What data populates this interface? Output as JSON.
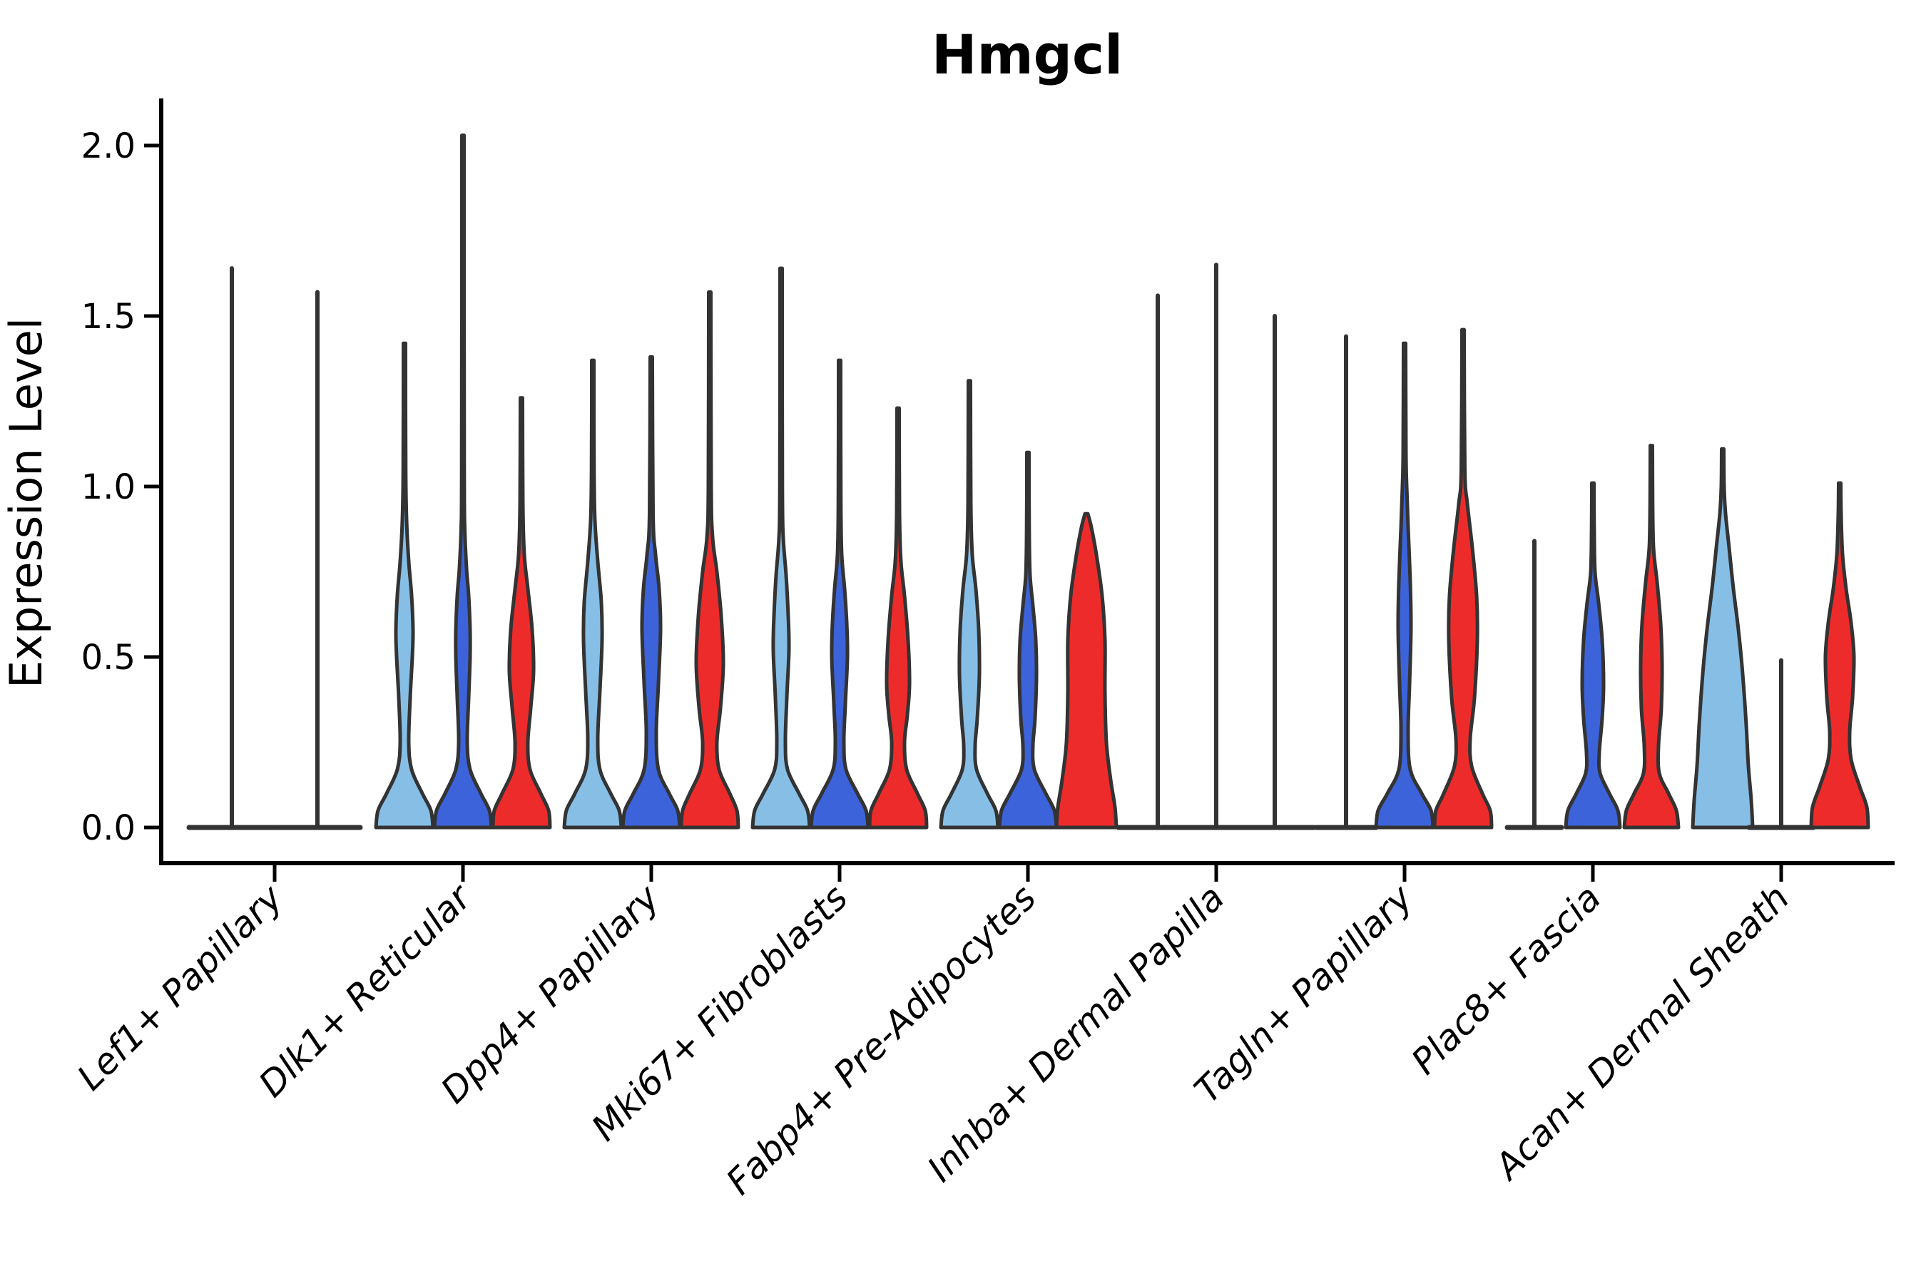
{
  "title": "Hmgcl",
  "axes": {
    "ylabel": "Expression Level",
    "y_tick_labels": [
      "0.0",
      "0.5",
      "1.0",
      "1.5",
      "2.0"
    ],
    "y_tick_values": [
      0,
      0.5,
      1.0,
      1.5,
      2.0
    ],
    "x_categories": [
      "Lef1+ Papillary",
      "Dlk1+ Reticular",
      "Dpp4+ Papillary",
      "Mki67+ Fibroblasts",
      "Fabp4+ Pre-Adipocytes",
      "Inhba+ Dermal Papilla",
      "Tagln+ Papillary",
      "Plac8+ Fascia",
      "Acan+ Dermal Sheath"
    ]
  },
  "colors": {
    "light_blue": "#87BEE6",
    "dark_blue": "#3C63D9",
    "red": "#EE2B2B",
    "edge": "#333333",
    "spine": "#000000"
  },
  "chart_data": {
    "type": "violin",
    "title": "Hmgcl",
    "xlabel": "",
    "ylabel": "Expression Level",
    "ylim": [
      -0.1,
      2.14
    ],
    "grid": false,
    "legend": "none",
    "categories": [
      "Lef1+ Papillary",
      "Dlk1+ Reticular",
      "Dpp4+ Papillary",
      "Mki67+ Fibroblasts",
      "Fabp4+ Pre-Adipocytes",
      "Inhba+ Dermal Papilla",
      "Tagln+ Papillary",
      "Plac8+ Fascia",
      "Acan+ Dermal Sheath"
    ],
    "series": [
      {
        "name": "light-blue",
        "color": "#87BEE6",
        "max_expression": [
          1.64,
          1.42,
          1.37,
          1.64,
          1.31,
          1.56,
          1.44,
          0.84,
          1.11
        ]
      },
      {
        "name": "dark-blue",
        "color": "#3C63D9",
        "max_expression": [
          1.57,
          2.03,
          1.38,
          1.37,
          1.1,
          1.65,
          1.42,
          1.01,
          0.49
        ]
      },
      {
        "name": "red",
        "color": "#EE2B2B",
        "max_expression": [
          null,
          1.26,
          1.57,
          1.23,
          0.92,
          1.5,
          1.46,
          1.12,
          1.01
        ]
      }
    ],
    "violins": [
      {
        "category": 0,
        "series": "light-blue",
        "offset": -60,
        "kind": "flat",
        "flat_halfwidth": 60,
        "max": 1.64
      },
      {
        "category": 0,
        "series": "dark-blue",
        "offset": 60,
        "kind": "flat",
        "flat_halfwidth": 60,
        "max": 1.57
      },
      {
        "category": 1,
        "series": "light-blue",
        "offset": -82,
        "kind": "body",
        "max": 1.42,
        "profile": [
          [
            0,
            40
          ],
          [
            0.05,
            37
          ],
          [
            0.1,
            25
          ],
          [
            0.17,
            10
          ],
          [
            0.25,
            6
          ],
          [
            0.38,
            8
          ],
          [
            0.5,
            11
          ],
          [
            0.58,
            12
          ],
          [
            0.68,
            10
          ],
          [
            0.78,
            6
          ],
          [
            0.9,
            3
          ],
          [
            1.05,
            1.8
          ],
          [
            1.42,
            1.5
          ]
        ]
      },
      {
        "category": 1,
        "series": "dark-blue",
        "offset": 0,
        "kind": "body",
        "max": 2.03,
        "profile": [
          [
            0,
            40
          ],
          [
            0.05,
            37
          ],
          [
            0.1,
            25
          ],
          [
            0.17,
            10
          ],
          [
            0.25,
            6
          ],
          [
            0.38,
            8
          ],
          [
            0.5,
            10
          ],
          [
            0.58,
            10
          ],
          [
            0.68,
            8
          ],
          [
            0.76,
            5
          ],
          [
            0.88,
            2.5
          ],
          [
            1.05,
            1.8
          ],
          [
            2.03,
            1.5
          ]
        ]
      },
      {
        "category": 1,
        "series": "red",
        "offset": 82,
        "kind": "body",
        "max": 1.26,
        "profile": [
          [
            0,
            40
          ],
          [
            0.05,
            38
          ],
          [
            0.1,
            27
          ],
          [
            0.17,
            12
          ],
          [
            0.25,
            9
          ],
          [
            0.35,
            13
          ],
          [
            0.46,
            17
          ],
          [
            0.58,
            15
          ],
          [
            0.7,
            9
          ],
          [
            0.8,
            4
          ],
          [
            0.95,
            2
          ],
          [
            1.26,
            1.5
          ]
        ]
      },
      {
        "category": 2,
        "series": "light-blue",
        "offset": -82,
        "kind": "body",
        "max": 1.37,
        "profile": [
          [
            0,
            40
          ],
          [
            0.05,
            37
          ],
          [
            0.1,
            25
          ],
          [
            0.17,
            10
          ],
          [
            0.26,
            7
          ],
          [
            0.4,
            10
          ],
          [
            0.55,
            13
          ],
          [
            0.66,
            12
          ],
          [
            0.78,
            7
          ],
          [
            0.9,
            3
          ],
          [
            1.05,
            1.8
          ],
          [
            1.37,
            1.5
          ]
        ]
      },
      {
        "category": 2,
        "series": "dark-blue",
        "offset": 0,
        "kind": "body",
        "max": 1.38,
        "profile": [
          [
            0,
            40
          ],
          [
            0.05,
            37
          ],
          [
            0.1,
            25
          ],
          [
            0.17,
            10
          ],
          [
            0.28,
            7
          ],
          [
            0.42,
            10
          ],
          [
            0.58,
            13
          ],
          [
            0.7,
            11
          ],
          [
            0.8,
            6
          ],
          [
            0.92,
            2.5
          ],
          [
            1.38,
            1.5
          ]
        ]
      },
      {
        "category": 2,
        "series": "red",
        "offset": 82,
        "kind": "body",
        "max": 1.57,
        "profile": [
          [
            0,
            40
          ],
          [
            0.05,
            38
          ],
          [
            0.1,
            28
          ],
          [
            0.17,
            13
          ],
          [
            0.25,
            10
          ],
          [
            0.35,
            15
          ],
          [
            0.48,
            19
          ],
          [
            0.62,
            16
          ],
          [
            0.75,
            10
          ],
          [
            0.85,
            4
          ],
          [
            1.0,
            2
          ],
          [
            1.57,
            1.5
          ]
        ]
      },
      {
        "category": 3,
        "series": "light-blue",
        "offset": -82,
        "kind": "body",
        "max": 1.64,
        "profile": [
          [
            0,
            40
          ],
          [
            0.05,
            37
          ],
          [
            0.1,
            25
          ],
          [
            0.17,
            9
          ],
          [
            0.25,
            6
          ],
          [
            0.38,
            8
          ],
          [
            0.52,
            11
          ],
          [
            0.62,
            10
          ],
          [
            0.74,
            7
          ],
          [
            0.85,
            3
          ],
          [
            1.0,
            1.8
          ],
          [
            1.64,
            1.5
          ]
        ]
      },
      {
        "category": 3,
        "series": "dark-blue",
        "offset": 0,
        "kind": "body",
        "max": 1.37,
        "profile": [
          [
            0,
            40
          ],
          [
            0.05,
            37
          ],
          [
            0.1,
            25
          ],
          [
            0.17,
            9
          ],
          [
            0.25,
            6
          ],
          [
            0.36,
            8
          ],
          [
            0.5,
            11
          ],
          [
            0.6,
            10
          ],
          [
            0.7,
            7
          ],
          [
            0.8,
            3
          ],
          [
            0.95,
            1.8
          ],
          [
            1.37,
            1.5
          ]
        ]
      },
      {
        "category": 3,
        "series": "red",
        "offset": 82,
        "kind": "body",
        "max": 1.23,
        "profile": [
          [
            0,
            40
          ],
          [
            0.05,
            38
          ],
          [
            0.1,
            27
          ],
          [
            0.17,
            12
          ],
          [
            0.25,
            9
          ],
          [
            0.33,
            13
          ],
          [
            0.42,
            16
          ],
          [
            0.55,
            14
          ],
          [
            0.68,
            9
          ],
          [
            0.78,
            4
          ],
          [
            0.92,
            2
          ],
          [
            1.23,
            1.5
          ]
        ]
      },
      {
        "category": 4,
        "series": "light-blue",
        "offset": -82,
        "kind": "body",
        "max": 1.31,
        "profile": [
          [
            0,
            40
          ],
          [
            0.05,
            37
          ],
          [
            0.1,
            25
          ],
          [
            0.17,
            10
          ],
          [
            0.24,
            8
          ],
          [
            0.32,
            11
          ],
          [
            0.45,
            14
          ],
          [
            0.58,
            13
          ],
          [
            0.7,
            9
          ],
          [
            0.8,
            4
          ],
          [
            0.95,
            2
          ],
          [
            1.31,
            1.5
          ]
        ]
      },
      {
        "category": 4,
        "series": "dark-blue",
        "offset": 0,
        "kind": "body",
        "max": 1.1,
        "profile": [
          [
            0,
            40
          ],
          [
            0.05,
            37
          ],
          [
            0.1,
            25
          ],
          [
            0.17,
            9
          ],
          [
            0.24,
            7
          ],
          [
            0.32,
            10
          ],
          [
            0.44,
            12
          ],
          [
            0.55,
            11
          ],
          [
            0.65,
            7
          ],
          [
            0.74,
            3
          ],
          [
            0.88,
            1.8
          ],
          [
            1.1,
            1.5
          ]
        ]
      },
      {
        "category": 4,
        "series": "red",
        "offset": 82,
        "kind": "body",
        "max": 0.92,
        "profile": [
          [
            0,
            42
          ],
          [
            0.06,
            40
          ],
          [
            0.14,
            34
          ],
          [
            0.25,
            28
          ],
          [
            0.4,
            26
          ],
          [
            0.55,
            26
          ],
          [
            0.68,
            22
          ],
          [
            0.8,
            14
          ],
          [
            0.88,
            7
          ],
          [
            0.92,
            2
          ]
        ]
      },
      {
        "category": 5,
        "series": "light-blue",
        "offset": -82,
        "kind": "flat",
        "flat_halfwidth": 55,
        "max": 1.56
      },
      {
        "category": 5,
        "series": "dark-blue",
        "offset": 0,
        "kind": "flat",
        "flat_halfwidth": 55,
        "max": 1.65
      },
      {
        "category": 5,
        "series": "red",
        "offset": 82,
        "kind": "flat",
        "flat_halfwidth": 55,
        "max": 1.5
      },
      {
        "category": 6,
        "series": "light-blue",
        "offset": -82,
        "kind": "flat",
        "flat_halfwidth": 42,
        "max": 1.44
      },
      {
        "category": 6,
        "series": "dark-blue",
        "offset": 0,
        "kind": "body",
        "max": 1.42,
        "profile": [
          [
            0,
            40
          ],
          [
            0.05,
            37
          ],
          [
            0.1,
            24
          ],
          [
            0.17,
            8
          ],
          [
            0.28,
            5
          ],
          [
            0.42,
            7
          ],
          [
            0.58,
            9
          ],
          [
            0.72,
            8
          ],
          [
            0.88,
            5
          ],
          [
            1.0,
            3
          ],
          [
            1.1,
            2
          ],
          [
            1.42,
            1.5
          ]
        ]
      },
      {
        "category": 6,
        "series": "red",
        "offset": 82,
        "kind": "body",
        "max": 1.46,
        "profile": [
          [
            0,
            40
          ],
          [
            0.05,
            38
          ],
          [
            0.1,
            27
          ],
          [
            0.18,
            12
          ],
          [
            0.26,
            10
          ],
          [
            0.38,
            16
          ],
          [
            0.55,
            20
          ],
          [
            0.68,
            19
          ],
          [
            0.82,
            13
          ],
          [
            0.95,
            6
          ],
          [
            1.05,
            2.5
          ],
          [
            1.46,
            1.5
          ]
        ]
      },
      {
        "category": 7,
        "series": "light-blue",
        "offset": -82,
        "kind": "flat",
        "flat_halfwidth": 38,
        "max": 0.84
      },
      {
        "category": 7,
        "series": "dark-blue",
        "offset": 0,
        "kind": "body",
        "max": 1.01,
        "profile": [
          [
            0,
            38
          ],
          [
            0.05,
            35
          ],
          [
            0.1,
            23
          ],
          [
            0.16,
            10
          ],
          [
            0.22,
            9
          ],
          [
            0.32,
            13
          ],
          [
            0.42,
            15
          ],
          [
            0.55,
            13
          ],
          [
            0.66,
            8
          ],
          [
            0.75,
            3
          ],
          [
            0.88,
            1.8
          ],
          [
            1.01,
            1.5
          ]
        ]
      },
      {
        "category": 7,
        "series": "red",
        "offset": 82,
        "kind": "body",
        "max": 1.12,
        "profile": [
          [
            0,
            38
          ],
          [
            0.05,
            35
          ],
          [
            0.1,
            24
          ],
          [
            0.16,
            11
          ],
          [
            0.24,
            10
          ],
          [
            0.35,
            14
          ],
          [
            0.48,
            15
          ],
          [
            0.6,
            13
          ],
          [
            0.72,
            8
          ],
          [
            0.82,
            3
          ],
          [
            0.95,
            1.8
          ],
          [
            1.12,
            1.5
          ]
        ]
      },
      {
        "category": 8,
        "series": "light-blue",
        "offset": -82,
        "kind": "body",
        "max": 1.11,
        "profile": [
          [
            0,
            42
          ],
          [
            0.08,
            40
          ],
          [
            0.18,
            36
          ],
          [
            0.3,
            33
          ],
          [
            0.45,
            28
          ],
          [
            0.58,
            22
          ],
          [
            0.7,
            15
          ],
          [
            0.82,
            9
          ],
          [
            0.92,
            4
          ],
          [
            1.0,
            2
          ],
          [
            1.11,
            1.5
          ]
        ]
      },
      {
        "category": 8,
        "series": "dark-blue",
        "offset": 0,
        "kind": "flat",
        "flat_halfwidth": 45,
        "max": 0.49
      },
      {
        "category": 8,
        "series": "red",
        "offset": 82,
        "kind": "body",
        "max": 1.01,
        "profile": [
          [
            0,
            40
          ],
          [
            0.06,
            38
          ],
          [
            0.12,
            28
          ],
          [
            0.2,
            16
          ],
          [
            0.28,
            14
          ],
          [
            0.38,
            18
          ],
          [
            0.5,
            20
          ],
          [
            0.6,
            16
          ],
          [
            0.7,
            9
          ],
          [
            0.8,
            4
          ],
          [
            0.92,
            2
          ],
          [
            1.01,
            1.5
          ]
        ]
      }
    ]
  }
}
